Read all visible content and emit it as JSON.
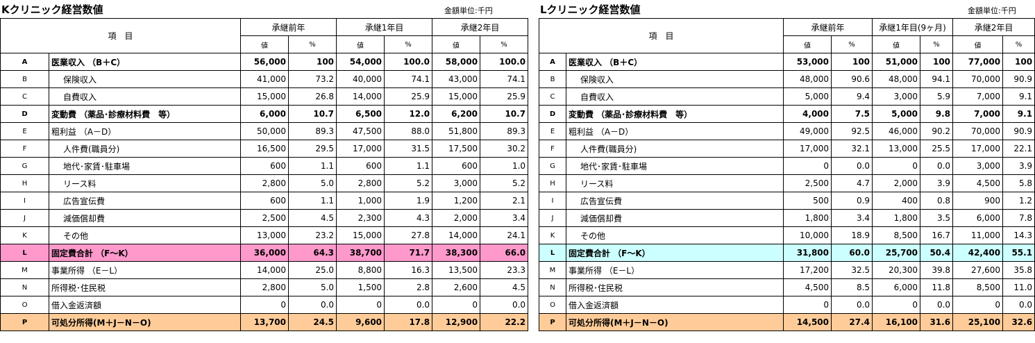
{
  "tables": [
    {
      "title": "Kクリニック経営数値",
      "unit": "金額単位:千円",
      "item_header": "項　目",
      "periods": [
        "承継前年",
        "承継1年目",
        "承継2年目"
      ],
      "sub_headers": [
        "値",
        "%"
      ],
      "rows": [
        {
          "code": "A",
          "item": "医業収入 （B＋C）",
          "cells": [
            "56,000",
            "100",
            "54,000",
            "100.0",
            "58,000",
            "100.0"
          ]
        },
        {
          "code": "B",
          "item": "保険収入",
          "cells": [
            "41,000",
            "73.2",
            "40,000",
            "74.1",
            "43,000",
            "74.1"
          ]
        },
        {
          "code": "C",
          "item": "自費収入",
          "cells": [
            "15,000",
            "26.8",
            "14,000",
            "25.9",
            "15,000",
            "25.9"
          ]
        },
        {
          "code": "D",
          "item": "変動費 （薬品･診療材料費　等）",
          "cells": [
            "6,000",
            "10.7",
            "6,500",
            "12.0",
            "6,200",
            "10.7"
          ]
        },
        {
          "code": "E",
          "item": "粗利益 （A－D）",
          "cells": [
            "50,000",
            "89.3",
            "47,500",
            "88.0",
            "51,800",
            "89.3"
          ]
        },
        {
          "code": "F",
          "item": "人件費(職員分)",
          "cells": [
            "16,500",
            "29.5",
            "17,000",
            "31.5",
            "17,500",
            "30.2"
          ]
        },
        {
          "code": "G",
          "item": "地代･家賃･駐車場",
          "cells": [
            "600",
            "1.1",
            "600",
            "1.1",
            "600",
            "1.0"
          ]
        },
        {
          "code": "H",
          "item": "リース料",
          "cells": [
            "2,800",
            "5.0",
            "2,800",
            "5.2",
            "3,000",
            "5.2"
          ]
        },
        {
          "code": "I",
          "item": "広告宣伝費",
          "cells": [
            "600",
            "1.1",
            "1,000",
            "1.9",
            "1,200",
            "2.1"
          ]
        },
        {
          "code": "J",
          "item": "減価償却費",
          "cells": [
            "2,500",
            "4.5",
            "2,300",
            "4.3",
            "2,000",
            "3.4"
          ]
        },
        {
          "code": "K",
          "item": "その他",
          "cells": [
            "13,000",
            "23.2",
            "15,000",
            "27.8",
            "14,000",
            "24.1"
          ]
        },
        {
          "code": "L",
          "item": "固定費合計 （F～K）",
          "cells": [
            "36,000",
            "64.3",
            "38,700",
            "71.7",
            "38,300",
            "66.0"
          ]
        },
        {
          "code": "M",
          "item": "事業所得 （E－L）",
          "cells": [
            "14,000",
            "25.0",
            "8,800",
            "16.3",
            "13,500",
            "23.3"
          ]
        },
        {
          "code": "N",
          "item": "所得税･住民税",
          "cells": [
            "2,800",
            "5.0",
            "1,500",
            "2.8",
            "2,600",
            "4.5"
          ]
        },
        {
          "code": "O",
          "item": "借入金返済額",
          "cells": [
            "0",
            "0.0",
            "0",
            "0.0",
            "0",
            "0.0"
          ]
        },
        {
          "code": "P",
          "item": "可処分所得(M＋J－N－O)",
          "cells": [
            "13,700",
            "24.5",
            "9,600",
            "17.8",
            "12,900",
            "22.2"
          ]
        }
      ]
    },
    {
      "title": "Lクリニック経営数値",
      "unit": "金額単位:千円",
      "item_header": "項　目",
      "periods": [
        "承継前年",
        "承継1年目(9ヶ月)",
        "承継2年目"
      ],
      "sub_headers": [
        "値",
        "%"
      ],
      "rows": [
        {
          "code": "A",
          "item": "医業収入 （B＋C）",
          "cells": [
            "53,000",
            "100",
            "51,000",
            "100",
            "77,000",
            "100"
          ]
        },
        {
          "code": "B",
          "item": "保険収入",
          "cells": [
            "48,000",
            "90.6",
            "48,000",
            "94.1",
            "70,000",
            "90.9"
          ]
        },
        {
          "code": "C",
          "item": "自費収入",
          "cells": [
            "5,000",
            "9.4",
            "3,000",
            "5.9",
            "7,000",
            "9.1"
          ]
        },
        {
          "code": "D",
          "item": "変動費 （薬品･診療材料費　等）",
          "cells": [
            "4,000",
            "7.5",
            "5,000",
            "9.8",
            "7,000",
            "9.1"
          ]
        },
        {
          "code": "E",
          "item": "粗利益 （A－D）",
          "cells": [
            "49,000",
            "92.5",
            "46,000",
            "90.2",
            "70,000",
            "90.9"
          ]
        },
        {
          "code": "F",
          "item": "人件費(職員分)",
          "cells": [
            "17,000",
            "32.1",
            "13,000",
            "25.5",
            "17,000",
            "22.1"
          ]
        },
        {
          "code": "G",
          "item": "地代･家賃･駐車場",
          "cells": [
            "0",
            "0.0",
            "0",
            "0.0",
            "3,000",
            "3.9"
          ]
        },
        {
          "code": "H",
          "item": "リース料",
          "cells": [
            "2,500",
            "4.7",
            "2,000",
            "3.9",
            "4,500",
            "5.8"
          ]
        },
        {
          "code": "I",
          "item": "広告宣伝費",
          "cells": [
            "500",
            "0.9",
            "400",
            "0.8",
            "900",
            "1.2"
          ]
        },
        {
          "code": "J",
          "item": "減価償却費",
          "cells": [
            "1,800",
            "3.4",
            "1,800",
            "3.5",
            "6,000",
            "7.8"
          ]
        },
        {
          "code": "K",
          "item": "その他",
          "cells": [
            "10,000",
            "18.9",
            "8,500",
            "16.7",
            "11,000",
            "14.3"
          ]
        },
        {
          "code": "L",
          "item": "固定費合計 （F～K）",
          "cells": [
            "31,800",
            "60.0",
            "25,700",
            "50.4",
            "42,400",
            "55.1"
          ]
        },
        {
          "code": "M",
          "item": "事業所得 （E－L）",
          "cells": [
            "17,200",
            "32.5",
            "20,300",
            "39.8",
            "27,600",
            "35.8"
          ]
        },
        {
          "code": "N",
          "item": "所得税･住民税",
          "cells": [
            "4,500",
            "8.5",
            "6,000",
            "11.8",
            "8,500",
            "11.0"
          ]
        },
        {
          "code": "O",
          "item": "借入金返済額",
          "cells": [
            "0",
            "0.0",
            "0",
            "0.0",
            "0",
            "0.0"
          ]
        },
        {
          "code": "P",
          "item": "可処分所得(M＋J－N－O)",
          "cells": [
            "14,500",
            "27.4",
            "16,100",
            "31.6",
            "25,100",
            "32.6"
          ]
        }
      ]
    }
  ]
}
